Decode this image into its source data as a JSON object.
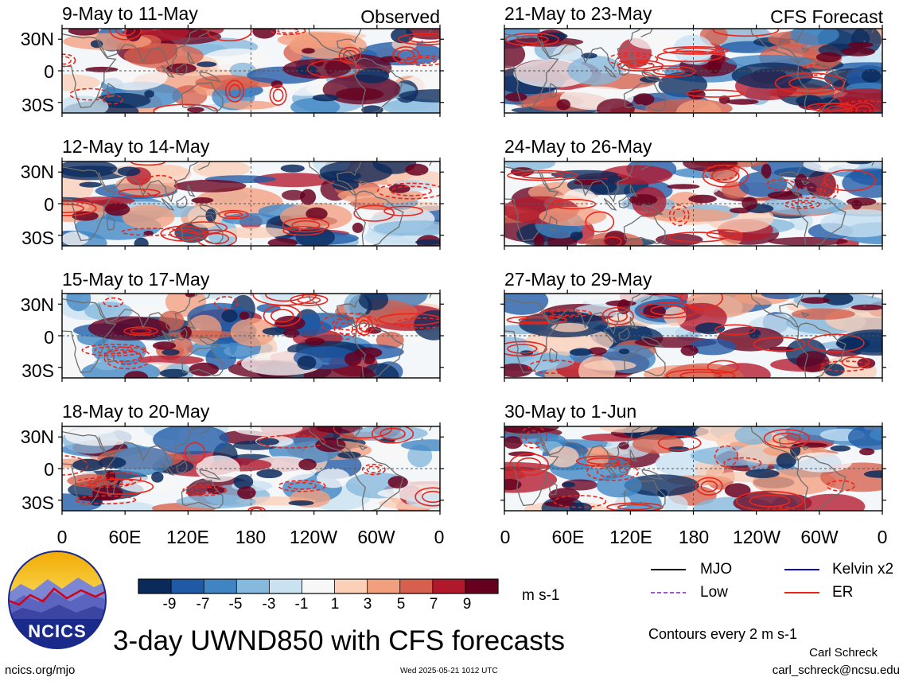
{
  "panels_left_header": "Observed",
  "panels_right_header": "CFS Forecast",
  "panels": [
    {
      "id": "p1",
      "title": "9-May to 11-May",
      "side": "left",
      "row": 0
    },
    {
      "id": "p2",
      "title": "12-May to 14-May",
      "side": "left",
      "row": 1
    },
    {
      "id": "p3",
      "title": "15-May to 17-May",
      "side": "left",
      "row": 2
    },
    {
      "id": "p4",
      "title": "18-May to 20-May",
      "side": "left",
      "row": 3
    },
    {
      "id": "p5",
      "title": "21-May to 23-May",
      "side": "right",
      "row": 0
    },
    {
      "id": "p6",
      "title": "24-May to 26-May",
      "side": "right",
      "row": 1
    },
    {
      "id": "p7",
      "title": "27-May to 29-May",
      "side": "right",
      "row": 2
    },
    {
      "id": "p8",
      "title": "30-May to 1-Jun",
      "side": "right",
      "row": 3
    }
  ],
  "lat_labels": [
    "30N",
    "0",
    "30S"
  ],
  "lon_labels": [
    "0",
    "60E",
    "120E",
    "180",
    "120W",
    "60W",
    "0"
  ],
  "colorbar": {
    "labels": [
      "-9",
      "-7",
      "-5",
      "-3",
      "-1",
      "1",
      "3",
      "5",
      "7",
      "9"
    ],
    "colors": [
      "#0a2a5c",
      "#1f5aa6",
      "#3f85c4",
      "#85b9dd",
      "#c9e1f1",
      "#f7f7f7",
      "#fbd0b9",
      "#f29f7d",
      "#d6604d",
      "#b2182b",
      "#67001f"
    ],
    "units": "m s-1"
  },
  "legend": [
    {
      "label": "MJO",
      "color": "#000000",
      "style": "solid"
    },
    {
      "label": "Kelvin x2",
      "color": "#0000cc",
      "style": "solid"
    },
    {
      "label": "Low",
      "color": "#9b59d0",
      "style": "dashed"
    },
    {
      "label": "ER",
      "color": "#e8261c",
      "style": "solid"
    }
  ],
  "contours_note": "Contours every 2 m s-1",
  "title": "3-day UWND850 with CFS forecasts",
  "logo_text": "NCICS",
  "author": "Carl Schreck",
  "email": "carl_schreck@ncsu.edu",
  "site": "ncics.org/mjo",
  "timestamp": "Wed 2025-05-21 1012 UTC"
}
